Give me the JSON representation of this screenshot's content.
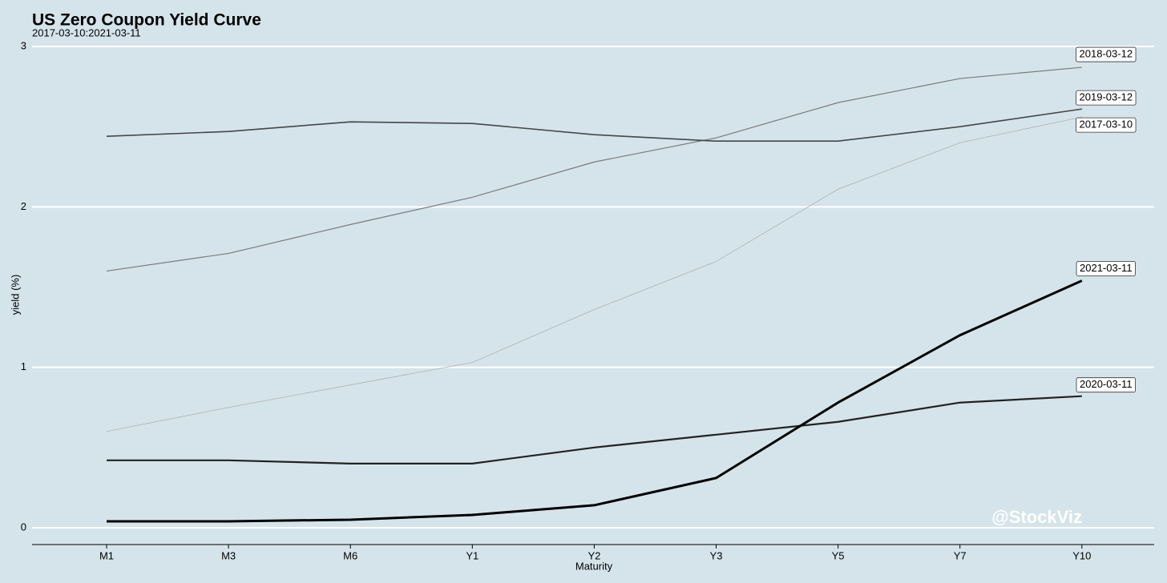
{
  "chart_data": {
    "type": "line",
    "title": "US Zero Coupon Yield Curve",
    "subtitle": "2017-03-10:2021-03-11",
    "x_label": "Maturity",
    "y_label": "yield (%)",
    "annotation": "@StockViz",
    "categories": [
      "M1",
      "M3",
      "M6",
      "Y1",
      "Y2",
      "Y3",
      "Y5",
      "Y7",
      "Y10"
    ],
    "series": [
      {
        "name": "2017-03-10",
        "color": "#b0b0b0",
        "values": [
          0.6,
          0.75,
          0.89,
          1.03,
          1.36,
          1.66,
          2.11,
          2.4,
          2.56
        ]
      },
      {
        "name": "2018-03-12",
        "color": "#7a7a7a",
        "values": [
          1.6,
          1.71,
          1.89,
          2.06,
          2.28,
          2.43,
          2.65,
          2.8,
          2.87
        ]
      },
      {
        "name": "2019-03-12",
        "color": "#454545",
        "values": [
          2.44,
          2.47,
          2.53,
          2.52,
          2.45,
          2.41,
          2.41,
          2.5,
          2.61
        ]
      },
      {
        "name": "2020-03-11",
        "color": "#222222",
        "values": [
          0.42,
          0.42,
          0.4,
          0.4,
          0.5,
          0.58,
          0.66,
          0.78,
          0.82
        ]
      },
      {
        "name": "2021-03-11",
        "color": "#000000",
        "values": [
          0.04,
          0.04,
          0.05,
          0.08,
          0.14,
          0.31,
          0.78,
          1.2,
          1.54
        ]
      }
    ],
    "ylim": [
      -0.105,
      3.05
    ],
    "yticks": [
      0,
      1,
      2,
      3
    ],
    "grid": true
  }
}
